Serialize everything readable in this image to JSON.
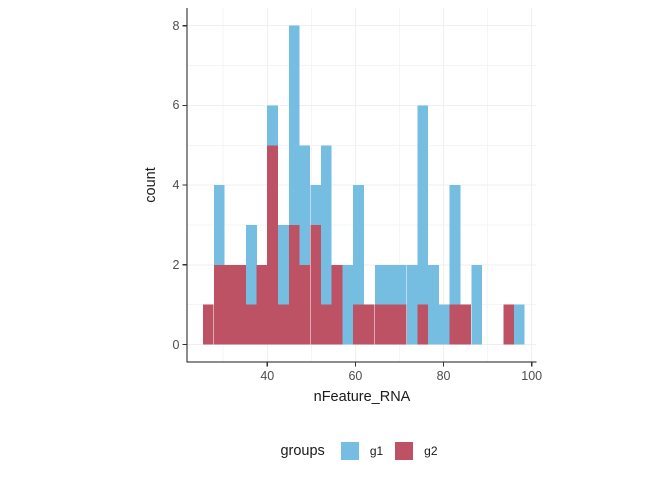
{
  "figure": {
    "background": "#ffffff"
  },
  "axes": {
    "x": {
      "title": "nFeature_RNA",
      "ticks": [
        40,
        60,
        80,
        100
      ],
      "minor_gridlines": [
        30,
        50,
        70,
        90
      ]
    },
    "y": {
      "title": "count",
      "ticks": [
        0,
        2,
        4,
        6,
        8
      ],
      "minor_gridlines": [
        1,
        3,
        5,
        7
      ]
    }
  },
  "legend": {
    "title": "groups",
    "items": [
      {
        "label": "g1",
        "color": "#76BDE2"
      },
      {
        "label": "g2",
        "color": "#BC5264"
      }
    ]
  },
  "colors": {
    "g1": "#76BDE2",
    "g2": "#BC5264",
    "gridline_major": "#efefef",
    "gridline_minor": "#f5f5f5",
    "axis_line": "#1a1a1a",
    "tick_mark": "#333333",
    "tick_label": "#4d4d4d",
    "title_text": "#1a1a1a"
  },
  "chart_data": {
    "type": "bar",
    "subtype": "stacked_histogram",
    "title": "",
    "xlabel": "nFeature_RNA",
    "ylabel": "count",
    "xlim": [
      21.8,
      101
    ],
    "ylim": [
      0,
      8.4
    ],
    "grid": true,
    "legend_position": "bottom",
    "binwidth": 2.433,
    "bin_centers": [
      26.6,
      29.1,
      31.5,
      33.9,
      36.4,
      38.8,
      41.2,
      43.7,
      46.1,
      48.5,
      51.0,
      53.4,
      55.8,
      58.3,
      60.7,
      63.1,
      65.6,
      68.0,
      70.4,
      72.9,
      75.3,
      77.7,
      80.2,
      82.6,
      85.0,
      87.5,
      89.9,
      92.3,
      94.8,
      97.2
    ],
    "stack_order_bottom_to_top": [
      "g2",
      "g1"
    ],
    "series": [
      {
        "name": "g1",
        "color": "#76BDE2",
        "values": [
          0,
          2,
          0,
          0,
          2,
          0,
          1,
          2,
          5,
          3,
          1,
          4,
          0,
          2,
          3,
          0,
          1,
          1,
          1,
          2,
          5,
          2,
          1,
          3,
          0,
          2,
          0,
          0,
          0,
          1
        ]
      },
      {
        "name": "g2",
        "color": "#BC5264",
        "values": [
          1,
          2,
          2,
          2,
          1,
          2,
          5,
          1,
          3,
          2,
          3,
          1,
          2,
          0,
          1,
          1,
          1,
          1,
          1,
          0,
          1,
          0,
          0,
          1,
          1,
          0,
          0,
          0,
          1,
          0
        ]
      }
    ],
    "totals": {
      "g1": 44,
      "g2": 36
    }
  }
}
